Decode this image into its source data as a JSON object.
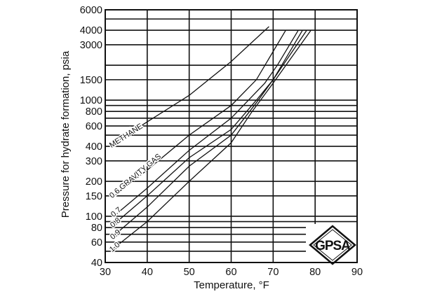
{
  "chart_data": {
    "type": "line",
    "title": "",
    "xlabel": "Temperature, °F",
    "ylabel": "Pressure for hydrate formation, psia",
    "xlim": [
      30,
      90
    ],
    "ylim": [
      40,
      6000
    ],
    "yscale": "log",
    "grid": true,
    "x_ticks": [
      30,
      40,
      50,
      60,
      70,
      80,
      90
    ],
    "y_ticks": [
      40,
      60,
      80,
      100,
      150,
      200,
      300,
      400,
      600,
      800,
      1000,
      1500,
      3000,
      4000,
      6000
    ],
    "y_gridlines": [
      40,
      50,
      60,
      70,
      80,
      90,
      100,
      150,
      200,
      300,
      400,
      500,
      600,
      700,
      800,
      900,
      1000,
      1500,
      2000,
      3000,
      4000,
      5000,
      6000
    ],
    "series": [
      {
        "name": "METHANE",
        "label": "METHANE",
        "points": [
          [
            31,
            400
          ],
          [
            40,
            650
          ],
          [
            50,
            1100
          ],
          [
            60,
            2150
          ],
          [
            69,
            4300
          ]
        ]
      },
      {
        "name": "0.6 GRAVITY GAS",
        "label": "0.6 GRAVITY GAS",
        "points": [
          [
            32,
            150
          ],
          [
            40,
            250
          ],
          [
            50,
            500
          ],
          [
            60,
            900
          ],
          [
            66,
            1500
          ],
          [
            73,
            4000
          ]
        ]
      },
      {
        "name": "0.7",
        "label": "0.7",
        "points": [
          [
            32,
            100
          ],
          [
            40,
            175
          ],
          [
            50,
            370
          ],
          [
            60,
            700
          ],
          [
            68,
            1400
          ],
          [
            71,
            2000
          ],
          [
            76,
            4000
          ]
        ]
      },
      {
        "name": "0.8",
        "label": "0.8",
        "points": [
          [
            32,
            85
          ],
          [
            40,
            150
          ],
          [
            50,
            320
          ],
          [
            60,
            560
          ],
          [
            66,
            1000
          ],
          [
            70,
            1500
          ],
          [
            77,
            4000
          ]
        ]
      },
      {
        "name": "0.9",
        "label": "0.9",
        "points": [
          [
            32,
            68
          ],
          [
            40,
            120
          ],
          [
            50,
            270
          ],
          [
            60,
            500
          ],
          [
            66,
            950
          ],
          [
            70,
            1500
          ],
          [
            78,
            4000
          ]
        ]
      },
      {
        "name": "1.0",
        "label": "1.0",
        "points": [
          [
            32,
            53
          ],
          [
            40,
            90
          ],
          [
            50,
            200
          ],
          [
            60,
            430
          ],
          [
            65,
            800
          ],
          [
            70,
            1400
          ],
          [
            79,
            4000
          ]
        ]
      }
    ],
    "annotations": [
      "GPSA logo"
    ]
  },
  "axes": {
    "x_label": "Temperature, °F",
    "y_label": "Pressure for hydrate formation, psia"
  },
  "logo": {
    "text": "GPSA",
    "icon": "gpsa-diamond-logo"
  }
}
